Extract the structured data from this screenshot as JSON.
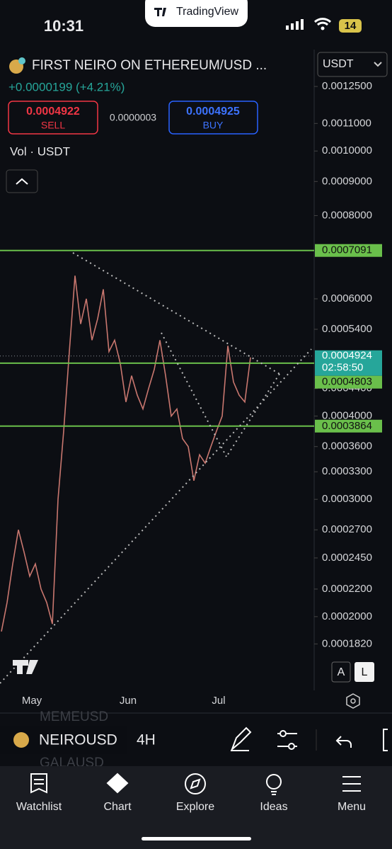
{
  "status_bar": {
    "time": "10:31",
    "app": "TradingView",
    "battery": "14"
  },
  "header": {
    "title": "FIRST NEIRO ON ETHEREUM/USD ...",
    "change": "+0.0000199 (+4.21%)",
    "currency": "USDT"
  },
  "quote": {
    "sell_price": "0.0004922",
    "sell_label": "SELL",
    "spread": "0.0000003",
    "buy_price": "0.0004925",
    "buy_label": "BUY"
  },
  "indicator": "Vol · USDT",
  "chart_data": {
    "type": "line",
    "log_scale": true,
    "ylim": [
      0.000155,
      0.00142
    ],
    "yticks": [
      {
        "value": 0.00125,
        "label": "0.0012500"
      },
      {
        "value": 0.0011,
        "label": "0.0011000"
      },
      {
        "value": 0.001,
        "label": "0.0010000"
      },
      {
        "value": 0.0009,
        "label": "0.0009000"
      },
      {
        "value": 0.0008,
        "label": "0.0008000"
      },
      {
        "value": 0.0006,
        "label": "0.0006000"
      },
      {
        "value": 0.00054,
        "label": "0.0005400"
      },
      {
        "value": 0.00044,
        "label": "0.0004400"
      },
      {
        "value": 0.0004,
        "label": "0.0004000"
      },
      {
        "value": 0.00036,
        "label": "0.0003600"
      },
      {
        "value": 0.00033,
        "label": "0.0003300"
      },
      {
        "value": 0.0003,
        "label": "0.0003000"
      },
      {
        "value": 0.00027,
        "label": "0.0002700"
      },
      {
        "value": 0.000245,
        "label": "0.0002450"
      },
      {
        "value": 0.00022,
        "label": "0.0002200"
      },
      {
        "value": 0.0002,
        "label": "0.0002000"
      },
      {
        "value": 0.000182,
        "label": "0.0001820"
      }
    ],
    "levels": [
      {
        "value": 0.0007091,
        "label": "0.0007091"
      },
      {
        "value": 0.0004803,
        "label": "0.0004803"
      },
      {
        "value": 0.0003864,
        "label": "0.0003864"
      }
    ],
    "level_color": "#6abf4b",
    "last_price": {
      "value": 0.0004924,
      "label": "0.0004924",
      "countdown": "02:58:50"
    },
    "categories": [
      null,
      null,
      null,
      null,
      null,
      "May",
      null,
      null,
      null,
      null,
      null,
      null,
      null,
      null,
      null,
      null,
      null,
      null,
      null,
      null,
      null,
      null,
      "Jun",
      null,
      null,
      null,
      null,
      null,
      null,
      null,
      null,
      null,
      null,
      null,
      null,
      null,
      null,
      null,
      "Jul",
      null,
      null,
      null,
      null,
      null,
      null
    ],
    "values": [
      0.00019,
      0.00021,
      0.00024,
      0.00027,
      0.00025,
      0.00023,
      0.00024,
      0.00022,
      0.00021,
      0.000195,
      0.0003,
      0.00038,
      0.0005,
      0.00065,
      0.00055,
      0.0006,
      0.00052,
      0.00056,
      0.00062,
      0.0005,
      0.00052,
      0.00048,
      0.00042,
      0.00046,
      0.00043,
      0.00041,
      0.00044,
      0.00047,
      0.00052,
      0.00046,
      0.0004,
      0.00041,
      0.00037,
      0.00036,
      0.00032,
      0.00035,
      0.00034,
      0.00036,
      0.00038,
      0.0004,
      0.00051,
      0.00045,
      0.00043,
      0.00042,
      0.00049
    ],
    "color": "#c9776f"
  },
  "scale_buttons": [
    "A",
    "L"
  ],
  "toolbar": {
    "symbol": "NEIROUSD",
    "interval": "4H",
    "ghost_above": "MEMEUSD",
    "ghost_below": "GALAUSD"
  },
  "nav": [
    "Watchlist",
    "Chart",
    "Explore",
    "Ideas",
    "Menu"
  ]
}
